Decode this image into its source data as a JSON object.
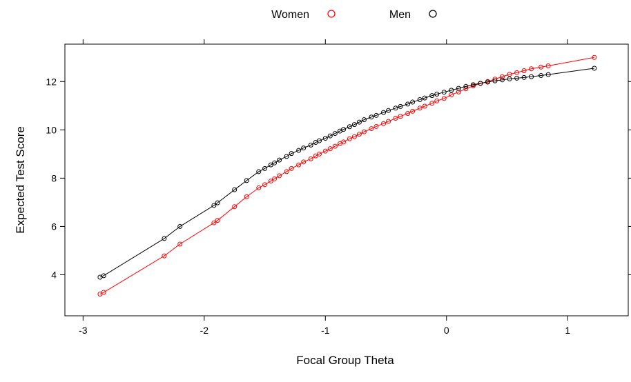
{
  "chart_data": {
    "type": "line",
    "xlabel": "Focal Group Theta",
    "ylabel": "Expected Test Score",
    "xlim": [
      -3.15,
      1.5
    ],
    "ylim": [
      2.3,
      13.55
    ],
    "xticks": [
      -3,
      -2,
      -1,
      0,
      1
    ],
    "xtick_labels": [
      "-3",
      "-2",
      "-1",
      "0",
      "1"
    ],
    "yticks": [
      4,
      6,
      8,
      10,
      12
    ],
    "ytick_labels": [
      "4",
      "6",
      "8",
      "10",
      "12"
    ],
    "legend_position": "top-center",
    "grid": false,
    "series": [
      {
        "name": "Women",
        "color": "#ff0000",
        "marker": "open-circle",
        "x": [
          -2.86,
          -2.83,
          -2.33,
          -2.2,
          -1.92,
          -1.89,
          -1.75,
          -1.65,
          -1.55,
          -1.5,
          -1.45,
          -1.42,
          -1.38,
          -1.32,
          -1.28,
          -1.22,
          -1.18,
          -1.12,
          -1.08,
          -1.05,
          -1.0,
          -0.96,
          -0.92,
          -0.88,
          -0.85,
          -0.8,
          -0.76,
          -0.72,
          -0.68,
          -0.62,
          -0.58,
          -0.52,
          -0.48,
          -0.42,
          -0.38,
          -0.32,
          -0.28,
          -0.22,
          -0.18,
          -0.12,
          -0.08,
          -0.02,
          0.04,
          0.1,
          0.16,
          0.22,
          0.28,
          0.34,
          0.4,
          0.46,
          0.52,
          0.58,
          0.64,
          0.7,
          0.78,
          0.84,
          1.22
        ],
        "y": [
          3.2,
          3.27,
          4.78,
          5.27,
          6.15,
          6.25,
          6.82,
          7.23,
          7.6,
          7.73,
          7.88,
          7.97,
          8.1,
          8.27,
          8.4,
          8.55,
          8.67,
          8.8,
          8.92,
          9.0,
          9.12,
          9.22,
          9.32,
          9.43,
          9.5,
          9.63,
          9.72,
          9.82,
          9.92,
          10.05,
          10.14,
          10.26,
          10.35,
          10.48,
          10.56,
          10.68,
          10.77,
          10.9,
          10.98,
          11.1,
          11.2,
          11.3,
          11.45,
          11.57,
          11.7,
          11.82,
          11.92,
          12.0,
          12.1,
          12.2,
          12.3,
          12.37,
          12.45,
          12.53,
          12.6,
          12.65,
          13.0
        ]
      },
      {
        "name": "Men",
        "color": "#000000",
        "marker": "open-circle",
        "x": [
          -2.86,
          -2.83,
          -2.33,
          -2.2,
          -1.92,
          -1.89,
          -1.75,
          -1.65,
          -1.55,
          -1.5,
          -1.45,
          -1.42,
          -1.38,
          -1.32,
          -1.28,
          -1.22,
          -1.18,
          -1.12,
          -1.08,
          -1.05,
          -1.0,
          -0.96,
          -0.92,
          -0.88,
          -0.85,
          -0.8,
          -0.76,
          -0.72,
          -0.68,
          -0.62,
          -0.58,
          -0.52,
          -0.48,
          -0.42,
          -0.38,
          -0.32,
          -0.28,
          -0.22,
          -0.18,
          -0.12,
          -0.08,
          -0.02,
          0.04,
          0.1,
          0.16,
          0.22,
          0.28,
          0.34,
          0.4,
          0.46,
          0.52,
          0.58,
          0.64,
          0.7,
          0.78,
          0.84,
          1.22
        ],
        "y": [
          3.9,
          3.96,
          5.5,
          6.0,
          6.87,
          6.98,
          7.52,
          7.9,
          8.27,
          8.4,
          8.55,
          8.63,
          8.75,
          8.9,
          9.02,
          9.15,
          9.25,
          9.37,
          9.48,
          9.55,
          9.65,
          9.75,
          9.85,
          9.95,
          10.02,
          10.13,
          10.22,
          10.32,
          10.42,
          10.53,
          10.6,
          10.72,
          10.8,
          10.9,
          10.97,
          11.07,
          11.15,
          11.25,
          11.32,
          11.42,
          11.48,
          11.56,
          11.64,
          11.72,
          11.8,
          11.87,
          11.93,
          11.98,
          12.03,
          12.07,
          12.11,
          12.14,
          12.17,
          12.2,
          12.25,
          12.29,
          12.55
        ]
      }
    ]
  }
}
